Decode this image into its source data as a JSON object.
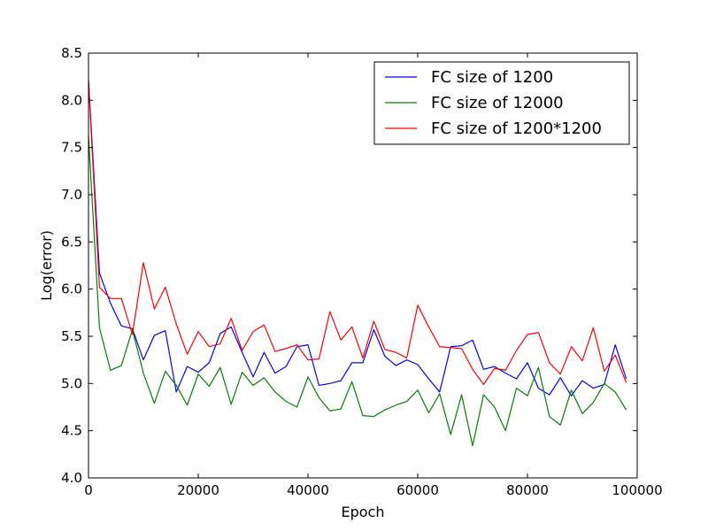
{
  "chart_data": {
    "type": "line",
    "title": "",
    "xlabel": "Epoch",
    "ylabel": "Log(error)",
    "xlim": [
      0,
      100000
    ],
    "ylim": [
      4.0,
      8.5
    ],
    "xticks": [
      0,
      20000,
      40000,
      60000,
      80000,
      100000
    ],
    "xtick_labels": [
      "0",
      "20000",
      "40000",
      "60000",
      "80000",
      "100000"
    ],
    "yticks": [
      4.0,
      4.5,
      5.0,
      5.5,
      6.0,
      6.5,
      7.0,
      7.5,
      8.0,
      8.5
    ],
    "ytick_labels": [
      "4.0",
      "4.5",
      "5.0",
      "5.5",
      "6.0",
      "6.5",
      "7.0",
      "7.5",
      "8.0",
      "8.5"
    ],
    "grid": false,
    "legend": "top-right",
    "x": [
      0,
      2000,
      4000,
      6000,
      8000,
      10000,
      12000,
      14000,
      16000,
      18000,
      20000,
      22000,
      24000,
      26000,
      28000,
      30000,
      32000,
      34000,
      36000,
      38000,
      40000,
      42000,
      44000,
      46000,
      48000,
      50000,
      52000,
      54000,
      56000,
      58000,
      60000,
      62000,
      64000,
      66000,
      68000,
      70000,
      72000,
      74000,
      76000,
      78000,
      80000,
      82000,
      84000,
      86000,
      88000,
      90000,
      92000,
      94000,
      96000,
      98000
    ],
    "series": [
      {
        "name": "FC size of 1200",
        "color": "#0000ff",
        "values": [
          8.22,
          6.17,
          5.85,
          5.61,
          5.58,
          5.25,
          5.51,
          5.56,
          4.91,
          5.18,
          5.12,
          5.22,
          5.53,
          5.6,
          5.33,
          5.07,
          5.33,
          5.11,
          5.18,
          5.39,
          5.41,
          4.98,
          5.0,
          5.03,
          5.22,
          5.22,
          5.57,
          5.29,
          5.19,
          5.25,
          5.2,
          5.05,
          4.91,
          5.39,
          5.4,
          5.46,
          5.15,
          5.18,
          5.11,
          5.05,
          5.22,
          4.95,
          4.88,
          5.06,
          4.87,
          5.03,
          4.95,
          4.99,
          5.41,
          5.05
        ]
      },
      {
        "name": "FC size of 12000",
        "color": "#008000",
        "values": [
          7.62,
          5.59,
          5.14,
          5.19,
          5.57,
          5.11,
          4.79,
          5.13,
          4.98,
          4.77,
          5.1,
          4.97,
          5.17,
          4.78,
          5.12,
          4.98,
          5.06,
          4.91,
          4.81,
          4.75,
          5.07,
          4.85,
          4.71,
          4.73,
          5.02,
          4.66,
          4.65,
          4.72,
          4.77,
          4.81,
          4.93,
          4.69,
          4.89,
          4.46,
          4.88,
          4.34,
          4.88,
          4.75,
          4.5,
          4.95,
          4.87,
          5.17,
          4.65,
          4.56,
          4.93,
          4.68,
          4.8,
          5.0,
          4.91,
          4.72
        ]
      },
      {
        "name": "FC size of 1200*1200",
        "color": "#ff0000",
        "values": [
          8.2,
          6.02,
          5.9,
          5.9,
          5.52,
          6.28,
          5.79,
          6.02,
          5.63,
          5.31,
          5.55,
          5.39,
          5.42,
          5.69,
          5.35,
          5.55,
          5.62,
          5.34,
          5.37,
          5.41,
          5.25,
          5.26,
          5.76,
          5.46,
          5.6,
          5.27,
          5.66,
          5.36,
          5.33,
          5.27,
          5.83,
          5.6,
          5.39,
          5.38,
          5.37,
          5.15,
          4.99,
          5.16,
          5.14,
          5.35,
          5.52,
          5.54,
          5.22,
          5.1,
          5.39,
          5.24,
          5.59,
          5.13,
          5.3,
          5.01
        ]
      }
    ]
  }
}
